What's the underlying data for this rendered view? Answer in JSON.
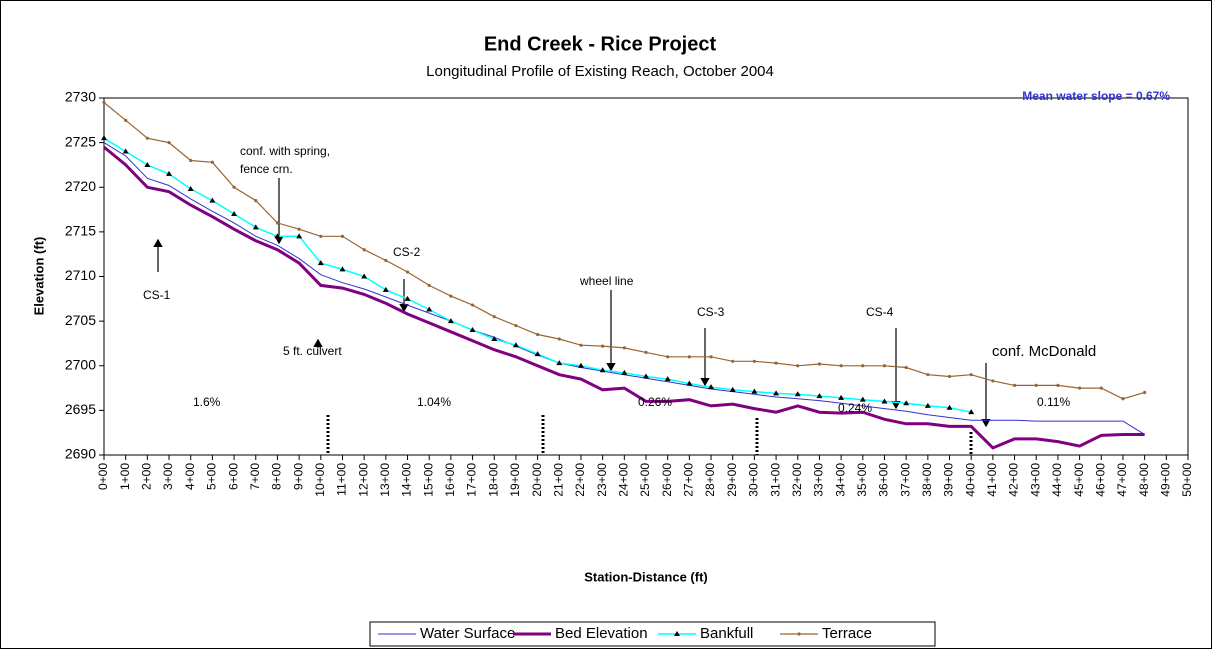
{
  "chart_data": {
    "type": "line",
    "title": "End Creek - Rice Project",
    "subtitle": "Longitudinal Profile of Existing Reach, October 2004",
    "x_label": "Station-Distance (ft)",
    "y_label": "Elevation (ft)",
    "annotations": [
      "Mean water slope = 0.67%",
      "conf. with spring,",
      "fence crn.",
      "CS-1",
      "CS-2",
      "5 ft. culvert",
      "wheel line",
      "CS-3",
      "CS-4",
      "conf. McDonald",
      "1.6%",
      "1.04%",
      "0.26%",
      "0.24%",
      "0.11%"
    ],
    "xlim": [
      0,
      5000
    ],
    "ylim": [
      2690,
      2730
    ],
    "yticks": [
      2690,
      2695,
      2700,
      2705,
      2710,
      2715,
      2720,
      2725,
      2730
    ],
    "xticks": [
      {
        "value": 0,
        "label": "0+00"
      },
      {
        "value": 100,
        "label": "1+00"
      },
      {
        "value": 200,
        "label": "2+00"
      },
      {
        "value": 300,
        "label": "3+00"
      },
      {
        "value": 400,
        "label": "4+00"
      },
      {
        "value": 500,
        "label": "5+00"
      },
      {
        "value": 600,
        "label": "6+00"
      },
      {
        "value": 700,
        "label": "7+00"
      },
      {
        "value": 800,
        "label": "8+00"
      },
      {
        "value": 900,
        "label": "9+00"
      },
      {
        "value": 1000,
        "label": "10+00"
      },
      {
        "value": 1100,
        "label": "11+00"
      },
      {
        "value": 1200,
        "label": "12+00"
      },
      {
        "value": 1300,
        "label": "13+00"
      },
      {
        "value": 1400,
        "label": "14+00"
      },
      {
        "value": 1500,
        "label": "15+00"
      },
      {
        "value": 1600,
        "label": "16+00"
      },
      {
        "value": 1700,
        "label": "17+00"
      },
      {
        "value": 1800,
        "label": "18+00"
      },
      {
        "value": 1900,
        "label": "19+00"
      },
      {
        "value": 2000,
        "label": "20+00"
      },
      {
        "value": 2100,
        "label": "21+00"
      },
      {
        "value": 2200,
        "label": "22+00"
      },
      {
        "value": 2300,
        "label": "23+00"
      },
      {
        "value": 2400,
        "label": "24+00"
      },
      {
        "value": 2500,
        "label": "25+00"
      },
      {
        "value": 2600,
        "label": "26+00"
      },
      {
        "value": 2700,
        "label": "27+00"
      },
      {
        "value": 2800,
        "label": "28+00"
      },
      {
        "value": 2900,
        "label": "29+00"
      },
      {
        "value": 3000,
        "label": "30+00"
      },
      {
        "value": 3100,
        "label": "31+00"
      },
      {
        "value": 3200,
        "label": "32+00"
      },
      {
        "value": 3300,
        "label": "33+00"
      },
      {
        "value": 3400,
        "label": "34+00"
      },
      {
        "value": 3500,
        "label": "35+00"
      },
      {
        "value": 3600,
        "label": "36+00"
      },
      {
        "value": 3700,
        "label": "37+00"
      },
      {
        "value": 3800,
        "label": "38+00"
      },
      {
        "value": 3900,
        "label": "39+00"
      },
      {
        "value": 4000,
        "label": "40+00"
      },
      {
        "value": 4100,
        "label": "41+00"
      },
      {
        "value": 4200,
        "label": "42+00"
      },
      {
        "value": 4300,
        "label": "43+00"
      },
      {
        "value": 4400,
        "label": "44+00"
      },
      {
        "value": 4500,
        "label": "45+00"
      },
      {
        "value": 4600,
        "label": "46+00"
      },
      {
        "value": 4700,
        "label": "47+00"
      },
      {
        "value": 4800,
        "label": "48+00"
      },
      {
        "value": 4900,
        "label": "49+00"
      },
      {
        "value": 5000,
        "label": "50+00"
      }
    ],
    "grid": false,
    "legend": "bottom",
    "x": [
      0,
      100,
      200,
      300,
      400,
      500,
      600,
      700,
      800,
      900,
      1000,
      1100,
      1200,
      1300,
      1400,
      1500,
      1600,
      1700,
      1800,
      1900,
      2000,
      2100,
      2200,
      2300,
      2400,
      2500,
      2600,
      2700,
      2800,
      2900,
      3000,
      3100,
      3200,
      3300,
      3400,
      3500,
      3600,
      3700,
      3800,
      3900,
      4000,
      4100,
      4200,
      4300,
      4400,
      4500,
      4600,
      4700,
      4800
    ],
    "series": [
      {
        "name": "Water Surface",
        "color": "#3333cc",
        "width": 1,
        "marker": "none",
        "values": [
          2725,
          2723.5,
          2721,
          2720.2,
          2718.7,
          2717.3,
          2716,
          2714.5,
          2713.5,
          2712,
          2710.2,
          2709.3,
          2708.6,
          2707.7,
          2706.8,
          2705.9,
          2705,
          2704,
          2703.2,
          2702.2,
          2701.2,
          2700.3,
          2699.8,
          2699.4,
          2699,
          2698.6,
          2698.2,
          2697.8,
          2697.4,
          2697.1,
          2696.8,
          2696.5,
          2696.3,
          2696.1,
          2695.8,
          2695.5,
          2695.2,
          2694.9,
          2694.5,
          2694.2,
          2693.9,
          2693.9,
          2693.9,
          2693.8,
          2693.8,
          2693.8,
          2693.8,
          2693.8,
          2692.3
        ]
      },
      {
        "name": "Bed Elevation",
        "color": "#800080",
        "width": 3,
        "marker": "none",
        "values": [
          2724.5,
          2722.5,
          2720,
          2719.5,
          2718,
          2716.7,
          2715.3,
          2714,
          2713,
          2711.5,
          2709,
          2708.7,
          2708,
          2707,
          2705.8,
          2704.8,
          2703.8,
          2702.8,
          2701.8,
          2701,
          2700,
          2699,
          2698.5,
          2697.3,
          2697.5,
          2696,
          2696,
          2696.2,
          2695.5,
          2695.7,
          2695.2,
          2694.8,
          2695.5,
          2694.8,
          2694.7,
          2694.8,
          2694,
          2693.5,
          2693.5,
          2693.2,
          2693.2,
          2690.8,
          2691.8,
          2691.8,
          2691.5,
          2691,
          2692.2,
          2692.3,
          2692.3
        ]
      },
      {
        "name": "Bankfull",
        "color": "#00ffff",
        "width": 1.5,
        "marker": "triangle",
        "values": [
          2725.5,
          2724,
          2722.5,
          2721.5,
          2719.8,
          2718.5,
          2717,
          2715.5,
          2714.5,
          2714.5,
          2711.5,
          2710.8,
          2710,
          2708.5,
          2707.5,
          2706.3,
          2705,
          2704,
          2703,
          2702.3,
          2701.3,
          2700.3,
          2700,
          2699.5,
          2699.2,
          2698.8,
          2698.5,
          2698,
          2697.6,
          2697.3,
          2697.1,
          2696.9,
          2696.8,
          2696.6,
          2696.4,
          2696.2,
          2696,
          2695.8,
          2695.5,
          2695.3,
          2694.8,
          null,
          null,
          null,
          null,
          null,
          null,
          null,
          null
        ]
      },
      {
        "name": "Terrace",
        "color": "#996633",
        "width": 1.2,
        "marker": "dot",
        "values": [
          2729.5,
          2727.5,
          2725.5,
          2725,
          2723,
          2722.8,
          2720,
          2718.5,
          2716,
          2715.3,
          2714.5,
          2714.5,
          2713,
          2711.8,
          2710.5,
          2709,
          2707.8,
          2706.8,
          2705.5,
          2704.5,
          2703.5,
          2703,
          2702.3,
          2702.2,
          2702,
          2701.5,
          2701,
          2701,
          2701,
          2700.5,
          2700.5,
          2700.3,
          2700,
          2700.2,
          2700,
          2700,
          2700,
          2699.8,
          2699,
          2698.8,
          2699,
          2698.3,
          2697.8,
          2697.8,
          2697.8,
          2697.5,
          2697.5,
          2696.3,
          2697
        ]
      }
    ]
  }
}
